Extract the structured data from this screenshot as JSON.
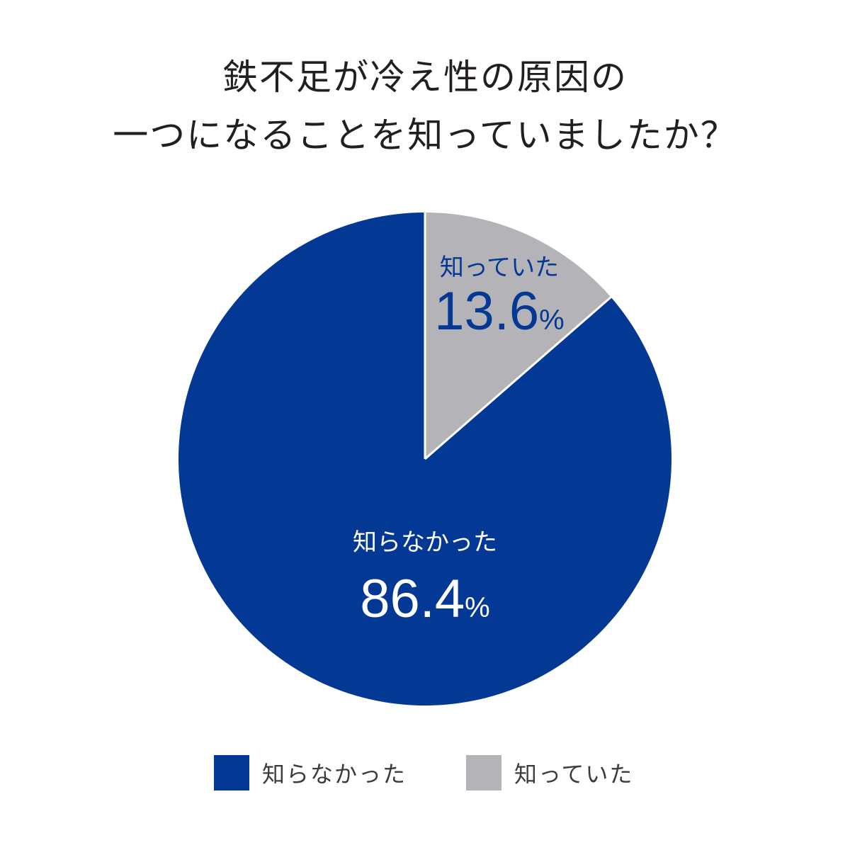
{
  "title": {
    "line1": "鉄不足が冷え性の原因の",
    "line2": "一つになることを知っていましたか？"
  },
  "colors": {
    "not_known": "#033894",
    "known": "#b4b3b8",
    "title_text": "#231f20"
  },
  "labels": {
    "known": {
      "name": "知っていた",
      "value": "13.6",
      "unit": "%"
    },
    "not_known": {
      "name": "知らなかった",
      "value": "86.4",
      "unit": "%"
    }
  },
  "legend": [
    {
      "label": "知らなかった",
      "color": "#033894"
    },
    {
      "label": "知っていた",
      "color": "#b4b3b8"
    }
  ],
  "chart_data": {
    "type": "pie",
    "title": "鉄不足が冷え性の原因の一つになることを知っていましたか？",
    "categories": [
      "知っていた",
      "知らなかった"
    ],
    "values": [
      13.6,
      86.4
    ],
    "unit": "%",
    "colors": [
      "#b4b3b8",
      "#033894"
    ],
    "start_angle": "12 o'clock, clockwise",
    "legend_position": "bottom"
  }
}
